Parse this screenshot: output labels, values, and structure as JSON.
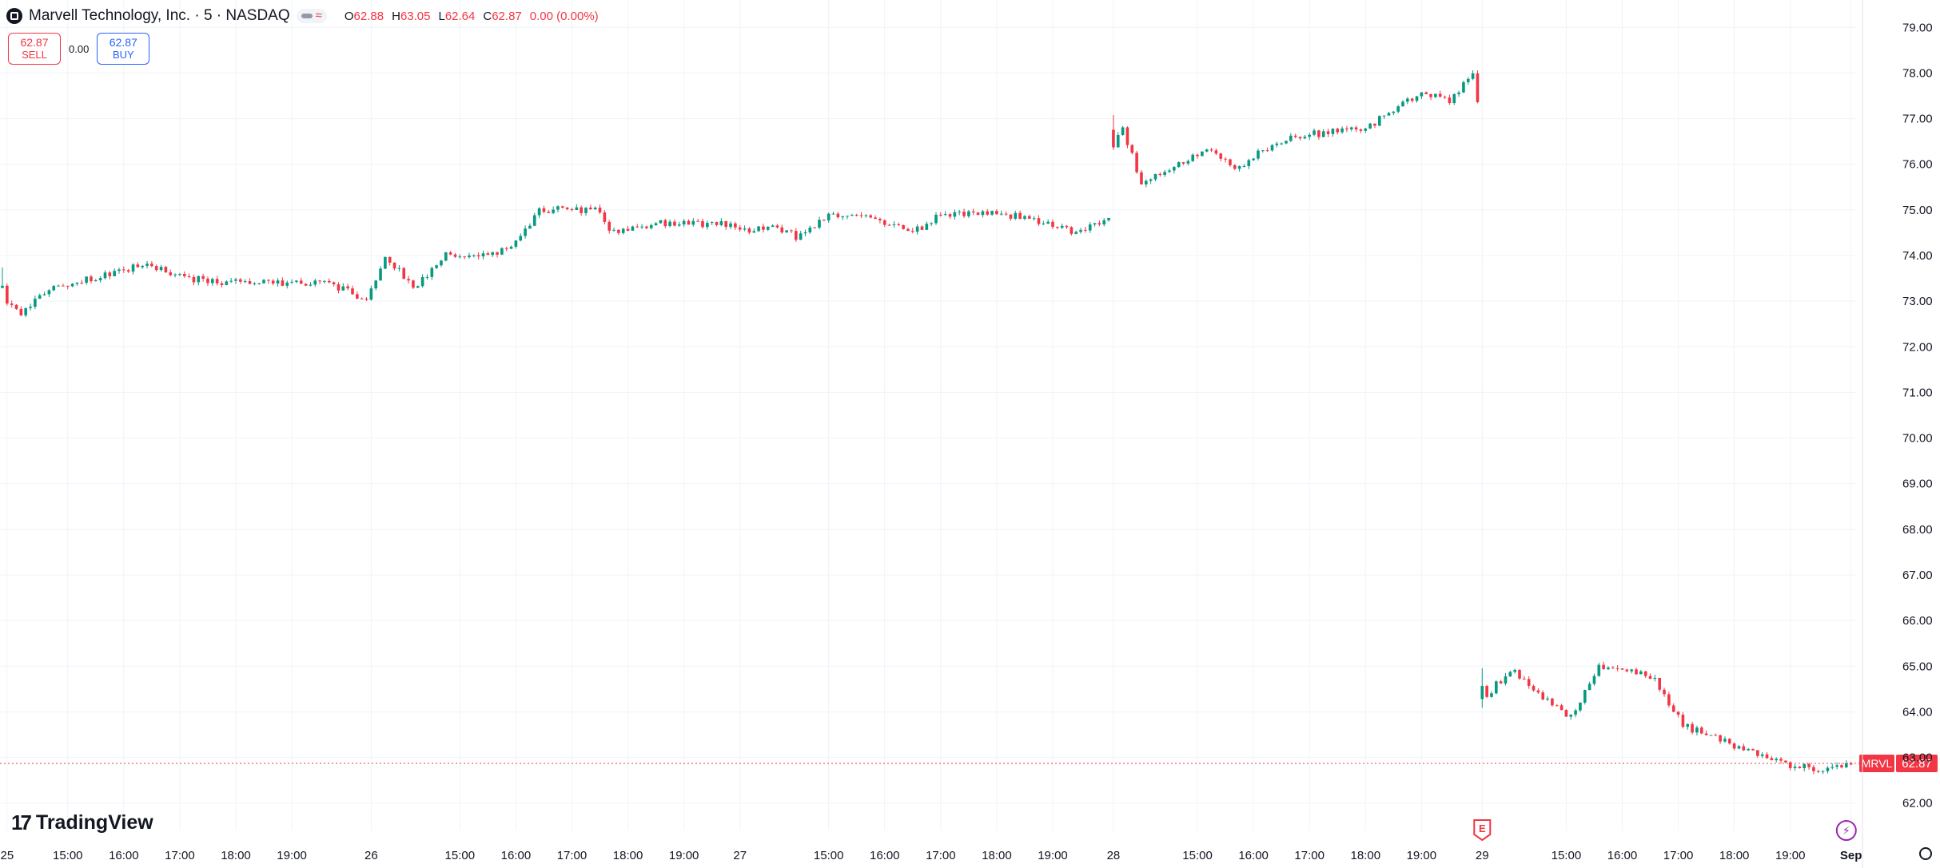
{
  "header": {
    "title": "Marvell Technology, Inc. · 5 · NASDAQ",
    "ohlc": {
      "o_label": "O",
      "o": "62.88",
      "h_label": "H",
      "h": "63.05",
      "l_label": "L",
      "l": "62.64",
      "c_label": "C",
      "c": "62.87",
      "change": "0.00 (0.00%)"
    }
  },
  "trade": {
    "sell_price": "62.87",
    "sell_label": "SELL",
    "spread": "0.00",
    "buy_price": "62.87",
    "buy_label": "BUY"
  },
  "branding": {
    "logo_text": "TradingView"
  },
  "colors": {
    "up": "#089981",
    "down": "#f23645",
    "grid": "#f0f3fa",
    "text": "#131722",
    "earnings": "#f23645",
    "dividend": "#9c27b0"
  },
  "chart_data": {
    "type": "candlestick",
    "symbol": "MRVL",
    "interval": "5",
    "last_price": "62.87",
    "ylim": [
      61.4,
      79.6
    ],
    "y_ticks": [
      "62.00",
      "63.00",
      "64.00",
      "65.00",
      "66.00",
      "67.00",
      "68.00",
      "69.00",
      "70.00",
      "71.00",
      "72.00",
      "73.00",
      "74.00",
      "75.00",
      "76.00",
      "77.00",
      "78.00",
      "79.00"
    ],
    "x_ticks": [
      {
        "label": "25",
        "bar": 1,
        "bold": false
      },
      {
        "label": "15:00",
        "bar": 14,
        "bold": false
      },
      {
        "label": "16:00",
        "bar": 26,
        "bold": false
      },
      {
        "label": "17:00",
        "bar": 38,
        "bold": false
      },
      {
        "label": "18:00",
        "bar": 50,
        "bold": false
      },
      {
        "label": "19:00",
        "bar": 62,
        "bold": false
      },
      {
        "label": "26",
        "bar": 79,
        "bold": false
      },
      {
        "label": "15:00",
        "bar": 98,
        "bold": false
      },
      {
        "label": "16:00",
        "bar": 110,
        "bold": false
      },
      {
        "label": "17:00",
        "bar": 122,
        "bold": false
      },
      {
        "label": "18:00",
        "bar": 134,
        "bold": false
      },
      {
        "label": "19:00",
        "bar": 146,
        "bold": false
      },
      {
        "label": "27",
        "bar": 158,
        "bold": false
      },
      {
        "label": "15:00",
        "bar": 177,
        "bold": false
      },
      {
        "label": "16:00",
        "bar": 189,
        "bold": false
      },
      {
        "label": "17:00",
        "bar": 201,
        "bold": false
      },
      {
        "label": "18:00",
        "bar": 213,
        "bold": false
      },
      {
        "label": "19:00",
        "bar": 225,
        "bold": false
      },
      {
        "label": "28",
        "bar": 238,
        "bold": false
      },
      {
        "label": "15:00",
        "bar": 256,
        "bold": false
      },
      {
        "label": "16:00",
        "bar": 268,
        "bold": false
      },
      {
        "label": "17:00",
        "bar": 280,
        "bold": false
      },
      {
        "label": "18:00",
        "bar": 292,
        "bold": false
      },
      {
        "label": "19:00",
        "bar": 304,
        "bold": false
      },
      {
        "label": "29",
        "bar": 317,
        "bold": false
      },
      {
        "label": "15:00",
        "bar": 335,
        "bold": false
      },
      {
        "label": "16:00",
        "bar": 347,
        "bold": false
      },
      {
        "label": "17:00",
        "bar": 359,
        "bold": false
      },
      {
        "label": "18:00",
        "bar": 371,
        "bold": false
      },
      {
        "label": "19:00",
        "bar": 383,
        "bold": false
      },
      {
        "label": "Sep",
        "bar": 396,
        "bold": true
      }
    ],
    "events": [
      {
        "type": "earnings",
        "label": "E",
        "bar": 317
      },
      {
        "type": "dividend",
        "label": "⚡",
        "bar": 395
      }
    ],
    "sessions": [
      {
        "start_bar": 0,
        "anchors": [
          [
            0,
            73.1
          ],
          [
            4,
            72.7
          ],
          [
            10,
            73.3
          ],
          [
            20,
            73.5
          ],
          [
            30,
            73.8
          ],
          [
            40,
            73.5
          ],
          [
            50,
            73.4
          ],
          [
            60,
            73.4
          ],
          [
            70,
            73.4
          ],
          [
            78,
            73.0
          ],
          [
            82,
            74.0
          ],
          [
            88,
            73.3
          ],
          [
            95,
            74.0
          ],
          [
            105,
            74.0
          ],
          [
            110,
            74.3
          ],
          [
            115,
            75.0
          ],
          [
            127,
            75.0
          ],
          [
            131,
            74.5
          ],
          [
            140,
            74.7
          ],
          [
            155,
            74.7
          ],
          [
            160,
            74.5
          ],
          [
            165,
            74.7
          ],
          [
            170,
            74.4
          ],
          [
            177,
            74.9
          ],
          [
            187,
            74.8
          ],
          [
            195,
            74.5
          ],
          [
            201,
            74.9
          ],
          [
            215,
            74.9
          ],
          [
            225,
            74.7
          ],
          [
            229,
            74.5
          ],
          [
            237,
            74.8
          ]
        ]
      },
      {
        "start_bar": 238,
        "anchors": [
          [
            238,
            76.5
          ],
          [
            240,
            76.8
          ],
          [
            244,
            75.6
          ],
          [
            252,
            76.0
          ],
          [
            258,
            76.3
          ],
          [
            264,
            75.9
          ],
          [
            270,
            76.3
          ],
          [
            276,
            76.6
          ],
          [
            284,
            76.7
          ],
          [
            292,
            76.8
          ],
          [
            300,
            77.3
          ],
          [
            304,
            77.6
          ],
          [
            310,
            77.4
          ],
          [
            315,
            78.0
          ],
          [
            316,
            77.3
          ]
        ]
      },
      {
        "start_bar": 317,
        "anchors": [
          [
            317,
            64.2
          ],
          [
            320,
            64.6
          ],
          [
            324,
            64.9
          ],
          [
            330,
            64.3
          ],
          [
            336,
            63.9
          ],
          [
            342,
            65.0
          ],
          [
            350,
            64.9
          ],
          [
            354,
            64.7
          ],
          [
            360,
            63.7
          ],
          [
            370,
            63.3
          ],
          [
            380,
            62.9
          ],
          [
            390,
            62.7
          ],
          [
            396,
            62.87
          ]
        ]
      }
    ]
  }
}
